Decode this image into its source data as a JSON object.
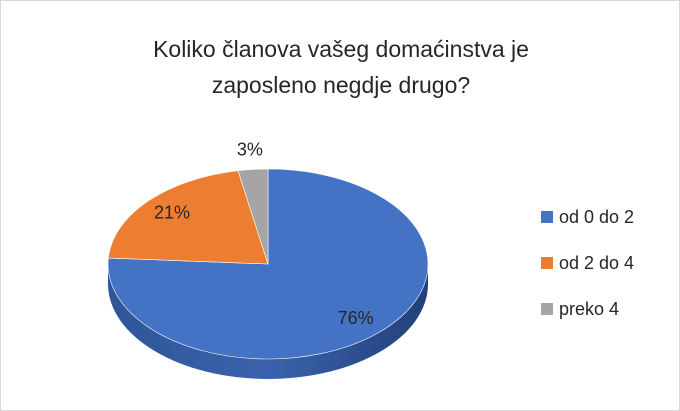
{
  "chart_data": {
    "type": "pie",
    "title": "Koliko članova vašeg domaćinstva je zaposleno negdje drugo?",
    "categories": [
      "od 0 do 2",
      "od 2 do 4",
      "preko 4"
    ],
    "values": [
      76,
      21,
      3
    ],
    "value_labels": [
      "76%",
      "21%",
      "3%"
    ],
    "colors": [
      "#4472c4",
      "#ed7d31",
      "#a5a5a5"
    ],
    "legend": "right"
  }
}
